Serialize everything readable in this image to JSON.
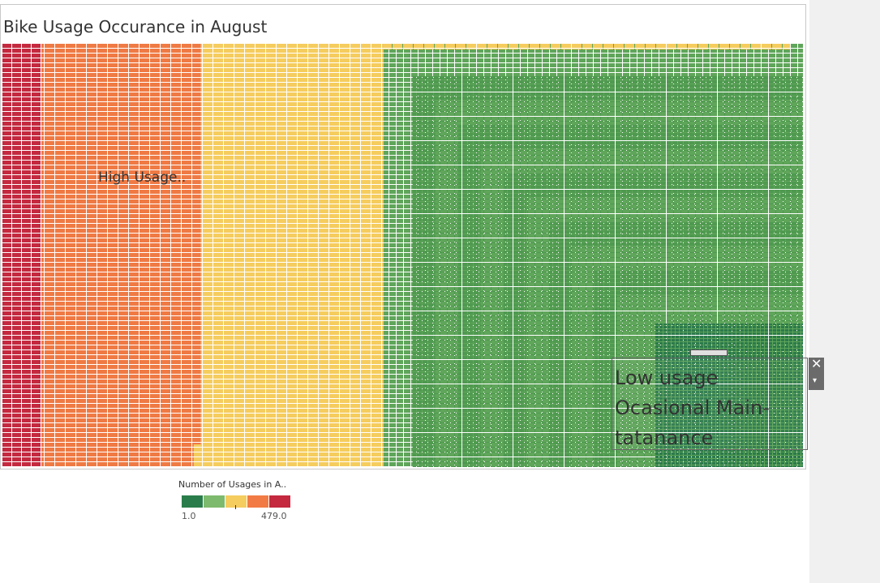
{
  "chart_data": {
    "type": "heatmap",
    "title": "Bike Usage Occurance in August",
    "subtype": "treemap",
    "color_scale": {
      "title": "Number of Usages in A..",
      "min": "1.0",
      "max": "479.0",
      "colors": [
        "#2a7d4a",
        "#7dba6d",
        "#f5cc5e",
        "#f27b45",
        "#c4293f"
      ]
    },
    "bands": [
      {
        "color": "#c4293f",
        "share": 0.049
      },
      {
        "color": "#ef7a44",
        "share": 0.199
      },
      {
        "color": "#f5cc5e",
        "share": 0.228
      },
      {
        "color": "#5fa55a",
        "share": 0.524
      }
    ],
    "annotations": {
      "high": "High Usage..",
      "low": [
        "Low usage",
        "Ocasional Main-",
        "tatanance"
      ]
    }
  },
  "controls": {
    "close_glyph": "✕",
    "menu_glyph": "▾"
  }
}
